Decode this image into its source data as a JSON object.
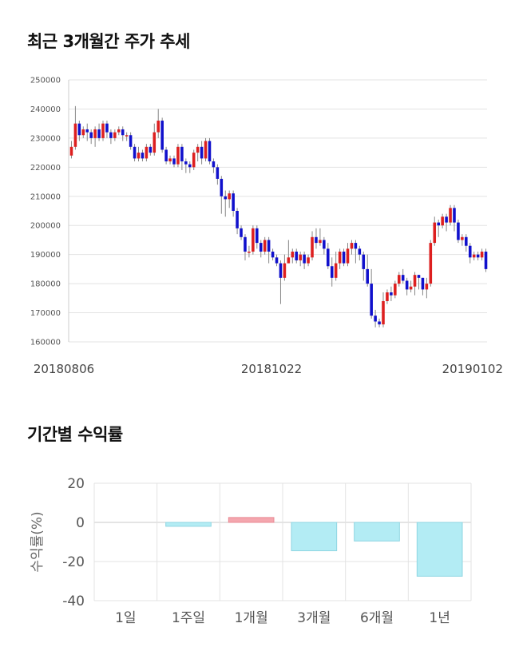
{
  "titles": {
    "price": "최근 3개월간 주가 추세",
    "returns": "기간별 수익률"
  },
  "colors": {
    "up": "#dd1f1f",
    "down": "#1010cc",
    "bar": "#b3ecf4",
    "bar_positive": "#f4a6ae",
    "grid": "#e3e3e3"
  },
  "chart_data": [
    {
      "type": "candlestick",
      "title": "최근 3개월간 주가 추세",
      "ylim": [
        160000,
        250000
      ],
      "y_ticks": [
        "250000",
        "240000",
        "230000",
        "220000",
        "210000",
        "200000",
        "190000",
        "180000",
        "170000",
        "160000"
      ],
      "x_tick_labels": [
        "20180806",
        "20181022",
        "20190102"
      ],
      "grid": true,
      "candles": [
        [
          224000,
          227000,
          223000,
          229000
        ],
        [
          227000,
          235000,
          226000,
          241000
        ],
        [
          235000,
          231000,
          229000,
          236000
        ],
        [
          231000,
          233000,
          230000,
          234000
        ],
        [
          233000,
          232000,
          229000,
          235000
        ],
        [
          232000,
          230000,
          228000,
          233000
        ],
        [
          230000,
          233000,
          227000,
          234000
        ],
        [
          233000,
          230000,
          229000,
          235000
        ],
        [
          230000,
          235000,
          229000,
          236000
        ],
        [
          235000,
          232000,
          230000,
          236000
        ],
        [
          232000,
          230000,
          228000,
          233000
        ],
        [
          230000,
          232000,
          229000,
          233000
        ],
        [
          232000,
          233000,
          231000,
          234000
        ],
        [
          233000,
          231000,
          229000,
          234000
        ],
        [
          231000,
          231000,
          229000,
          232000
        ],
        [
          231000,
          227000,
          226000,
          232000
        ],
        [
          227000,
          223000,
          222000,
          228000
        ],
        [
          223000,
          225000,
          222000,
          227000
        ],
        [
          225000,
          223000,
          222000,
          226000
        ],
        [
          223000,
          227000,
          222000,
          228000
        ],
        [
          227000,
          225000,
          224000,
          228000
        ],
        [
          225000,
          232000,
          224000,
          235000
        ],
        [
          232000,
          236000,
          230000,
          240000
        ],
        [
          236000,
          226000,
          225000,
          237000
        ],
        [
          226000,
          222000,
          221000,
          227000
        ],
        [
          222000,
          223000,
          221000,
          224000
        ],
        [
          223000,
          221000,
          220000,
          224000
        ],
        [
          221000,
          227000,
          220000,
          228000
        ],
        [
          227000,
          222000,
          219000,
          228000
        ],
        [
          222000,
          221000,
          218000,
          223000
        ],
        [
          221000,
          220000,
          218000,
          222000
        ],
        [
          220000,
          225000,
          219000,
          226000
        ],
        [
          225000,
          227000,
          222000,
          228000
        ],
        [
          227000,
          223000,
          221000,
          229000
        ],
        [
          223000,
          229000,
          222000,
          230000
        ],
        [
          229000,
          222000,
          221000,
          230000
        ],
        [
          222000,
          220000,
          218000,
          223000
        ],
        [
          220000,
          216000,
          214000,
          221000
        ],
        [
          216000,
          210000,
          204000,
          217000
        ],
        [
          210000,
          209000,
          203000,
          212000
        ],
        [
          209000,
          211000,
          206000,
          212000
        ],
        [
          211000,
          205000,
          203000,
          212000
        ],
        [
          205000,
          199000,
          197000,
          206000
        ],
        [
          199000,
          196000,
          195000,
          200000
        ],
        [
          196000,
          191000,
          188000,
          197000
        ],
        [
          191000,
          191000,
          189000,
          193000
        ],
        [
          191000,
          199000,
          190000,
          200000
        ],
        [
          199000,
          194000,
          192000,
          200000
        ],
        [
          194000,
          191000,
          189000,
          195000
        ],
        [
          191000,
          195000,
          190000,
          196000
        ],
        [
          195000,
          191000,
          187000,
          196000
        ],
        [
          191000,
          189000,
          188000,
          192000
        ],
        [
          189000,
          187000,
          186000,
          190000
        ],
        [
          187000,
          182000,
          173000,
          188000
        ],
        [
          182000,
          187000,
          181000,
          190000
        ],
        [
          187000,
          189000,
          187000,
          195000
        ],
        [
          189000,
          191000,
          187000,
          192000
        ],
        [
          191000,
          188000,
          187000,
          192000
        ],
        [
          188000,
          190000,
          186000,
          191000
        ],
        [
          190000,
          187000,
          185000,
          191000
        ],
        [
          187000,
          189000,
          186000,
          190000
        ],
        [
          189000,
          196000,
          188000,
          198000
        ],
        [
          196000,
          194000,
          192000,
          199000
        ],
        [
          194000,
          195000,
          193000,
          199000
        ],
        [
          195000,
          192000,
          190000,
          196000
        ],
        [
          192000,
          186000,
          185000,
          194000
        ],
        [
          186000,
          182000,
          179000,
          189000
        ],
        [
          182000,
          187000,
          181000,
          191000
        ],
        [
          187000,
          191000,
          185000,
          192000
        ],
        [
          191000,
          187000,
          186000,
          192000
        ],
        [
          187000,
          192000,
          186000,
          194000
        ],
        [
          192000,
          194000,
          190000,
          195000
        ],
        [
          194000,
          192000,
          187000,
          195000
        ],
        [
          192000,
          190000,
          188000,
          193000
        ],
        [
          190000,
          185000,
          181000,
          191000
        ],
        [
          185000,
          180000,
          179000,
          190000
        ],
        [
          180000,
          169000,
          168000,
          185000
        ],
        [
          169000,
          167000,
          165000,
          171000
        ],
        [
          167000,
          166000,
          165000,
          168000
        ],
        [
          166000,
          174000,
          165000,
          177000
        ],
        [
          174000,
          177000,
          173000,
          178000
        ],
        [
          177000,
          176000,
          174000,
          179000
        ],
        [
          176000,
          180000,
          175000,
          181000
        ],
        [
          180000,
          183000,
          179000,
          184000
        ],
        [
          183000,
          181000,
          180000,
          185000
        ],
        [
          181000,
          178000,
          176000,
          182000
        ],
        [
          178000,
          179000,
          177000,
          181000
        ],
        [
          179000,
          183000,
          176000,
          184000
        ],
        [
          183000,
          182000,
          178000,
          183000
        ],
        [
          182000,
          178000,
          176000,
          182000
        ],
        [
          178000,
          180000,
          175000,
          182000
        ],
        [
          180000,
          194000,
          179000,
          195000
        ],
        [
          194000,
          201000,
          193000,
          203000
        ],
        [
          201000,
          200000,
          196000,
          202000
        ],
        [
          200000,
          203000,
          199000,
          204000
        ],
        [
          203000,
          201000,
          198000,
          204000
        ],
        [
          201000,
          206000,
          200000,
          207000
        ],
        [
          206000,
          201000,
          198000,
          207000
        ],
        [
          201000,
          195000,
          194000,
          202000
        ],
        [
          195000,
          196000,
          193000,
          197000
        ],
        [
          196000,
          193000,
          191000,
          197000
        ],
        [
          193000,
          189000,
          187000,
          194000
        ],
        [
          189000,
          190000,
          188000,
          191000
        ],
        [
          190000,
          189000,
          188000,
          191000
        ],
        [
          189000,
          191000,
          188000,
          192000
        ],
        [
          191000,
          185000,
          184000,
          192000
        ]
      ]
    },
    {
      "type": "bar",
      "title": "기간별 수익률",
      "ylabel": "수익률(%)",
      "categories": [
        "1일",
        "1주일",
        "1개월",
        "3개월",
        "6개월",
        "1년"
      ],
      "values": [
        0,
        -2.0,
        2.5,
        -14.5,
        -9.5,
        -27.5
      ],
      "ylim": [
        -40,
        20
      ],
      "y_ticks": [
        "20",
        "0",
        "-20",
        "-40"
      ]
    }
  ]
}
